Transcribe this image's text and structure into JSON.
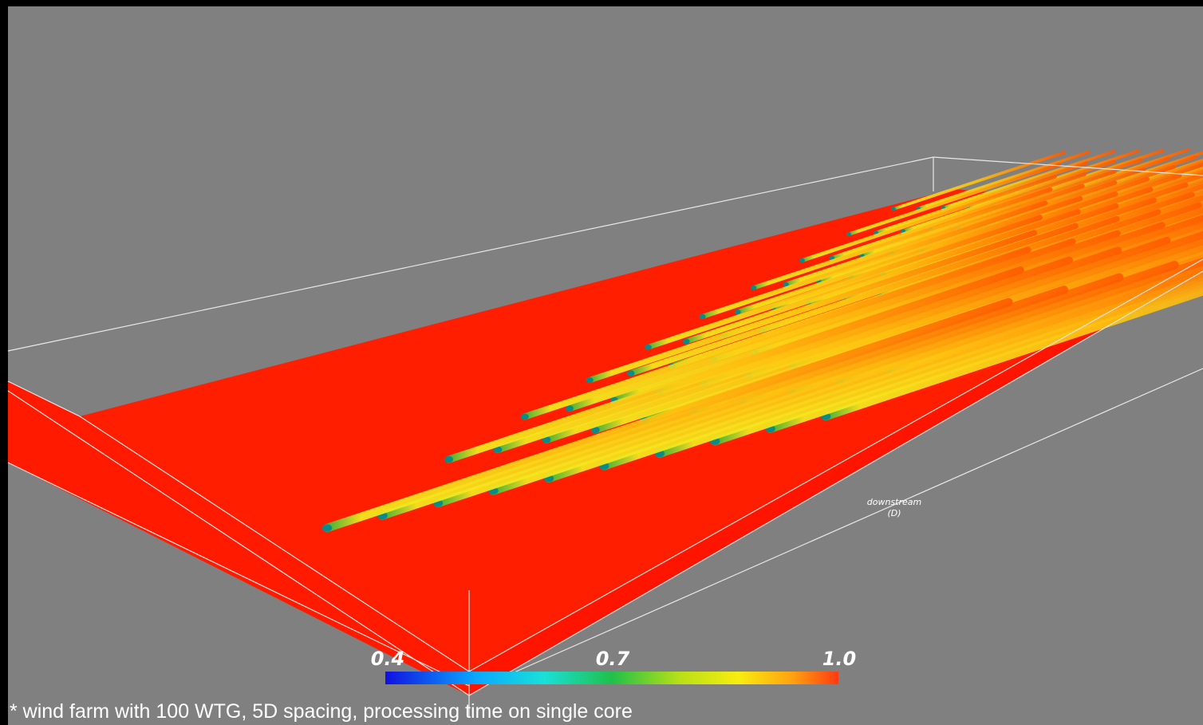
{
  "colorbar": {
    "labels": [
      "0.4",
      "0.7",
      "1.0"
    ]
  },
  "axis_label": {
    "title": "downstream",
    "unit": "(D)"
  },
  "caption": "* wind farm with 100 WTG, 5D spacing, processing time on single core"
}
